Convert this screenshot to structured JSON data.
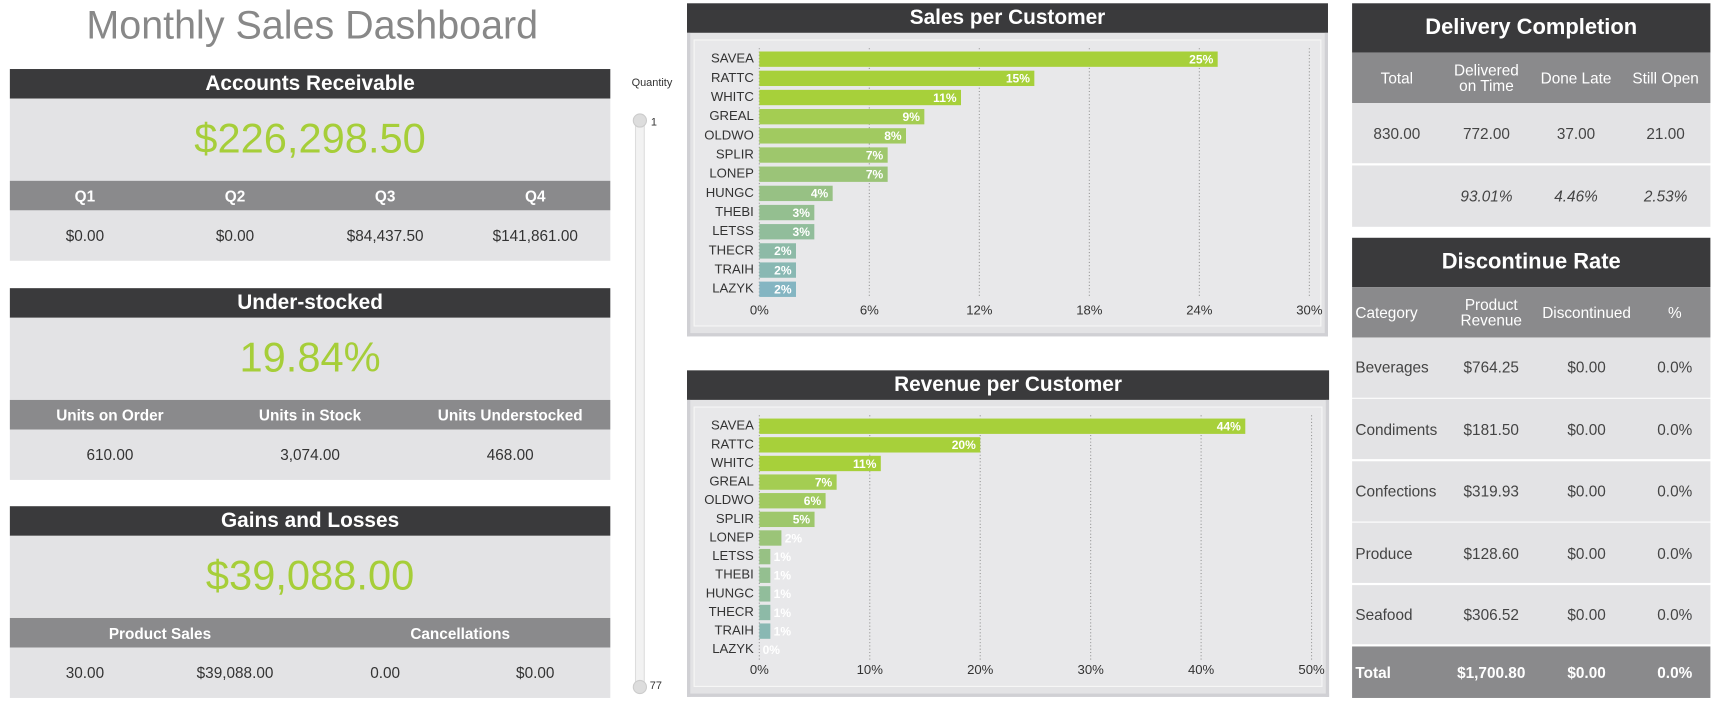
{
  "title": "Monthly Sales Dashboard",
  "accounts_receivable": {
    "title": "Accounts Receivable",
    "value": "$226,298.50",
    "headers": [
      "Q1",
      "Q2",
      "Q3",
      "Q4"
    ],
    "values": [
      "$0.00",
      "$0.00",
      "$84,437.50",
      "$141,861.00"
    ]
  },
  "under_stocked": {
    "title": "Under-stocked",
    "value": "19.84%",
    "headers": [
      "Units on Order",
      "Units in Stock",
      "Units Understocked"
    ],
    "values": [
      "610.00",
      "3,074.00",
      "468.00"
    ]
  },
  "gains_and_losses": {
    "title": "Gains and Losses",
    "value": "$39,088.00",
    "headers": [
      "Product Sales",
      "Cancellations"
    ],
    "values": [
      "30.00",
      "$39,088.00",
      "0.00",
      "$0.00"
    ]
  },
  "slider": {
    "label": "Quantity",
    "min": "1",
    "max": "77"
  },
  "chart_data": [
    {
      "type": "bar",
      "orientation": "horizontal",
      "title": "Sales per Customer",
      "categories": [
        "SAVEA",
        "RATTC",
        "WHITC",
        "GREAL",
        "OLDWO",
        "SPLIR",
        "LONEP",
        "HUNGC",
        "THEBI",
        "LETSS",
        "THECR",
        "TRAIH",
        "LAZYK"
      ],
      "values": [
        25,
        15,
        11,
        9,
        8,
        7,
        7,
        4,
        3,
        3,
        2,
        2,
        2
      ],
      "value_labels": [
        "25%",
        "15%",
        "11%",
        "9%",
        "8%",
        "7%",
        "7%",
        "4%",
        "3%",
        "3%",
        "2%",
        "2%",
        "2%"
      ],
      "colors": [
        "#a7d03a",
        "#a7d03a",
        "#a7d03a",
        "#a4cd52",
        "#a1ca60",
        "#9ec76c",
        "#9bc478",
        "#97c184",
        "#94bf90",
        "#91bd9b",
        "#8dbaa7",
        "#89b8b3",
        "#84b5c2"
      ],
      "xlim": [
        0,
        30
      ],
      "xticks": [
        {
          "value": 0,
          "label": "0%"
        },
        {
          "value": 6,
          "label": "6%"
        },
        {
          "value": 12,
          "label": "12%"
        },
        {
          "value": 18,
          "label": "18%"
        },
        {
          "value": 24,
          "label": "24%"
        },
        {
          "value": 30,
          "label": "30%"
        }
      ],
      "grid": true
    },
    {
      "type": "bar",
      "orientation": "horizontal",
      "title": "Revenue per Customer",
      "categories": [
        "SAVEA",
        "RATTC",
        "WHITC",
        "GREAL",
        "OLDWO",
        "SPLIR",
        "LONEP",
        "LETSS",
        "THEBI",
        "HUNGC",
        "THECR",
        "TRAIH",
        "LAZYK"
      ],
      "values": [
        44,
        20,
        11,
        7,
        6,
        5,
        2,
        1,
        1,
        1,
        1,
        1,
        0
      ],
      "value_labels": [
        "44%",
        "20%",
        "11%",
        "7%",
        "6%",
        "5%",
        "2%",
        "1%",
        "1%",
        "1%",
        "1%",
        "1%",
        "0%"
      ],
      "colors": [
        "#a7d03a",
        "#a7d03a",
        "#a7d03a",
        "#a4cd52",
        "#a1ca60",
        "#9ec76c",
        "#9bc478",
        "#97c184",
        "#94bf90",
        "#91bd9b",
        "#8dbaa7",
        "#89b8b3",
        "#84b5c2"
      ],
      "xlim": [
        0,
        50
      ],
      "xticks": [
        {
          "value": 0,
          "label": "0%"
        },
        {
          "value": 10,
          "label": "10%"
        },
        {
          "value": 20,
          "label": "20%"
        },
        {
          "value": 30,
          "label": "30%"
        },
        {
          "value": 40,
          "label": "40%"
        },
        {
          "value": 50,
          "label": "50%"
        }
      ],
      "grid": true
    }
  ],
  "delivery_completion": {
    "title": "Delivery Completion",
    "headers": [
      "Total",
      "Delivered on Time",
      "Done Late",
      "Still Open"
    ],
    "values": [
      "830.00",
      "772.00",
      "37.00",
      "21.00"
    ],
    "percents": [
      "93.01%",
      "4.46%",
      "2.53%"
    ]
  },
  "discontinue_rate": {
    "title": "Discontinue Rate",
    "headers": [
      "Category",
      "Product Revenue",
      "Discontinued",
      "%"
    ],
    "rows": [
      [
        "Beverages",
        "$764.25",
        "$0.00",
        "0.0%"
      ],
      [
        "Condiments",
        "$181.50",
        "$0.00",
        "0.0%"
      ],
      [
        "Confections",
        "$319.93",
        "$0.00",
        "0.0%"
      ],
      [
        "Produce",
        "$128.60",
        "$0.00",
        "0.0%"
      ],
      [
        "Seafood",
        "$306.52",
        "$0.00",
        "0.0%"
      ]
    ],
    "total": [
      "Total",
      "$1,700.80",
      "$0.00",
      "0.0%"
    ]
  }
}
